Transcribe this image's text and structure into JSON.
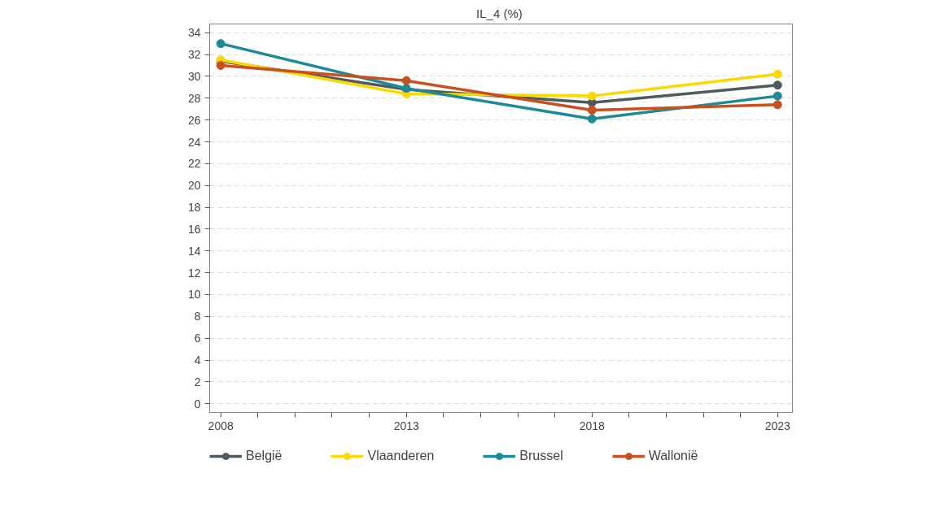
{
  "chart_data": {
    "type": "line",
    "title": "IL_4  (%)",
    "x": [
      2008,
      2013,
      2018,
      2023
    ],
    "series": [
      {
        "name": "België",
        "color": "#4f5a5e",
        "values": [
          31.4,
          28.8,
          27.6,
          29.2
        ]
      },
      {
        "name": "Vlaanderen",
        "color": "#fad800",
        "values": [
          31.5,
          28.4,
          28.2,
          30.2
        ]
      },
      {
        "name": "Brussel",
        "color": "#1e8a98",
        "values": [
          33.0,
          28.9,
          26.1,
          28.2
        ]
      },
      {
        "name": "Wallonië",
        "color": "#c9501c",
        "values": [
          31.0,
          29.6,
          26.9,
          27.4
        ]
      }
    ],
    "xlim": [
      2007.7,
      2023.4
    ],
    "ylim": [
      -0.8,
      34.8
    ],
    "xticks": [
      2008,
      {
        "value": 2009,
        "label": null
      },
      {
        "value": 2010,
        "label": null
      },
      {
        "value": 2011,
        "label": null
      },
      {
        "value": 2012,
        "label": null
      },
      2013,
      {
        "value": 2014,
        "label": null
      },
      {
        "value": 2015,
        "label": null
      },
      {
        "value": 2016,
        "label": null
      },
      {
        "value": 2017,
        "label": null
      },
      2018,
      {
        "value": 2019,
        "label": null
      },
      {
        "value": 2020,
        "label": null
      },
      {
        "value": 2021,
        "label": null
      },
      {
        "value": 2022,
        "label": null
      },
      2023
    ],
    "yticks": [
      0,
      2,
      4,
      6,
      8,
      10,
      12,
      14,
      16,
      18,
      20,
      22,
      24,
      26,
      28,
      30,
      32,
      34
    ],
    "grid": "y",
    "legend": "bottom",
    "marker": "circle",
    "line_style": "solid"
  }
}
